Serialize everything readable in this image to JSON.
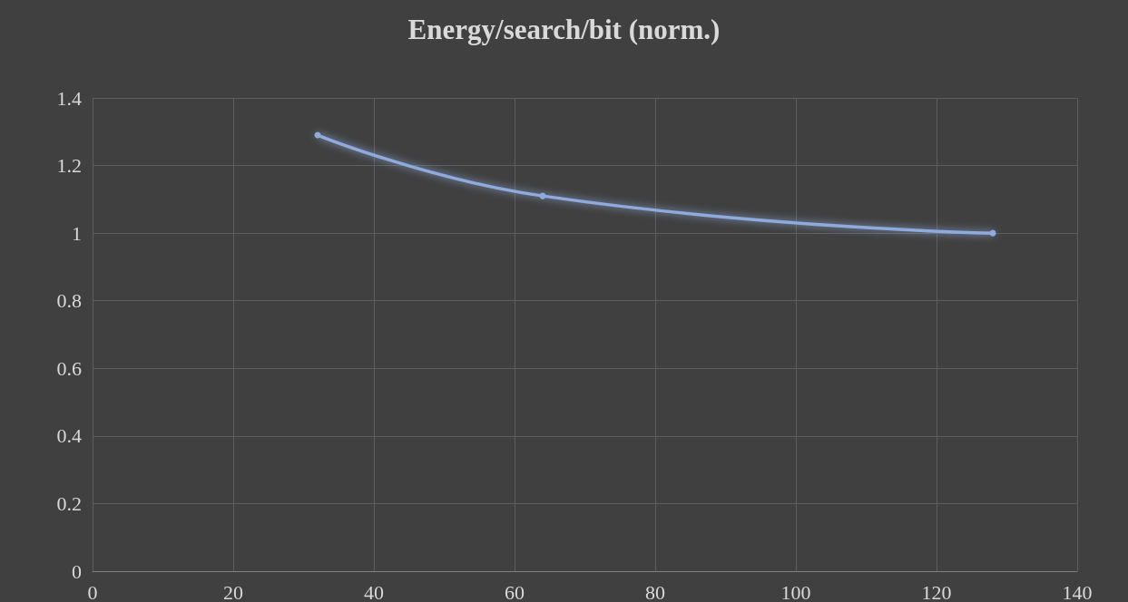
{
  "chart_data": {
    "type": "line",
    "title": "Energy/search/bit (norm.)",
    "x": [
      32,
      64,
      128
    ],
    "series": [
      {
        "color": "#8faadc",
        "values": [
          1.29,
          1.11,
          1.0
        ]
      }
    ],
    "xlim": [
      0,
      140
    ],
    "xticks": [
      0,
      20,
      40,
      60,
      80,
      100,
      120,
      140
    ],
    "ylim": [
      0,
      1.4
    ],
    "yticks": [
      0,
      0.2,
      0.4,
      0.6,
      0.8,
      1,
      1.2,
      1.4
    ],
    "grid": true,
    "marker": "circle",
    "line_style": "solid"
  }
}
